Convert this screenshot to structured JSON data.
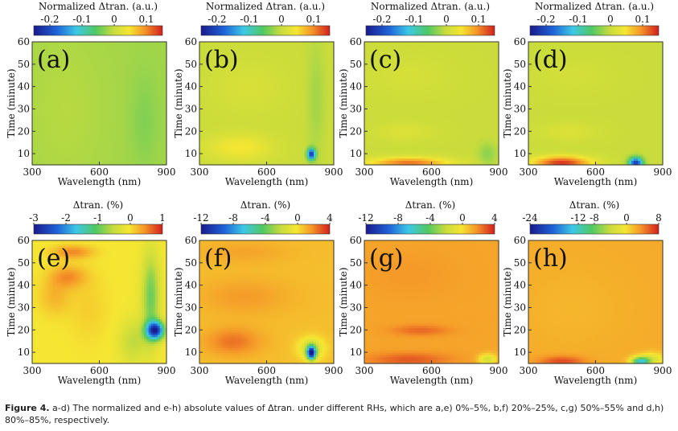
{
  "figure": {
    "caption_label": "Figure 4.",
    "caption_text": "a-d) The normalized and e-h) absolute values of Δtran. under different RHs, which are a,e) 0%–5%, b,f) 20%–25%, c,g) 50%–55% and d,h) 80%–85%, respectively."
  },
  "chart_data": [
    {
      "type": "heatmap",
      "panel": "(a)",
      "colorbar_title": "Normalized Δtran. (a.u.)",
      "colorbar_ticks": [
        "-0.2",
        "-0.1",
        "0",
        "0.1"
      ],
      "clim": [
        -0.25,
        0.15
      ],
      "colorbar_tick_values": [
        -0.2,
        -0.1,
        0,
        0.1
      ],
      "xlabel": "Wavelength (nm)",
      "ylabel": "Time (minute)",
      "x_ticks": [
        300,
        600,
        900
      ],
      "y_ticks": [
        10,
        20,
        30,
        40,
        50,
        60
      ],
      "xlim": [
        300,
        900
      ],
      "ylim": [
        5,
        60
      ],
      "base": -0.02,
      "features": [
        {
          "x": 450,
          "y": 30,
          "sx": 200,
          "sy": 40,
          "v": 0.01
        },
        {
          "x": 800,
          "y": 25,
          "sx": 60,
          "sy": 20,
          "v": -0.015
        }
      ]
    },
    {
      "type": "heatmap",
      "panel": "(b)",
      "colorbar_title": "Normalized Δtran. (a.u.)",
      "colorbar_ticks": [
        "-0.2",
        "-0.1",
        "0",
        "0.1"
      ],
      "clim": [
        -0.25,
        0.15
      ],
      "colorbar_tick_values": [
        -0.2,
        -0.1,
        0,
        0.1
      ],
      "xlabel": "Wavelength (nm)",
      "ylabel": "Time (minute)",
      "x_ticks": [
        300,
        600,
        900
      ],
      "y_ticks": [
        10,
        20,
        30,
        40,
        50,
        60
      ],
      "xlim": [
        300,
        900
      ],
      "ylim": [
        5,
        60
      ],
      "base": 0.0,
      "features": [
        {
          "x": 480,
          "y": 13,
          "sx": 150,
          "sy": 6,
          "v": 0.045
        },
        {
          "x": 520,
          "y": 40,
          "sx": 180,
          "sy": 12,
          "v": 0.015
        },
        {
          "x": 800,
          "y": 10,
          "sx": 18,
          "sy": 2.5,
          "v": -0.22
        },
        {
          "x": 820,
          "y": 35,
          "sx": 40,
          "sy": 25,
          "v": -0.02
        }
      ]
    },
    {
      "type": "heatmap",
      "panel": "(c)",
      "colorbar_title": "Normalized Δtran. (a.u.)",
      "colorbar_ticks": [
        "-0.2",
        "-0.1",
        "0",
        "0.1"
      ],
      "clim": [
        -0.25,
        0.15
      ],
      "colorbar_tick_values": [
        -0.2,
        -0.1,
        0,
        0.1
      ],
      "xlabel": "Wavelength (nm)",
      "ylabel": "Time (minute)",
      "x_ticks": [
        300,
        600,
        900
      ],
      "y_ticks": [
        10,
        20,
        30,
        40,
        50,
        60
      ],
      "xlim": [
        300,
        900
      ],
      "ylim": [
        5,
        60
      ],
      "base": 0.0,
      "features": [
        {
          "x": 500,
          "y": 6,
          "sx": 180,
          "sy": 2.5,
          "v": 0.11
        },
        {
          "x": 480,
          "y": 20,
          "sx": 130,
          "sy": 4,
          "v": 0.02
        },
        {
          "x": 500,
          "y": 45,
          "sx": 200,
          "sy": 10,
          "v": 0.012
        },
        {
          "x": 850,
          "y": 10,
          "sx": 40,
          "sy": 5,
          "v": -0.03
        }
      ]
    },
    {
      "type": "heatmap",
      "panel": "(d)",
      "colorbar_title": "Normalized Δtran. (a.u.)",
      "colorbar_ticks": [
        "-0.2",
        "-0.1",
        "0",
        "0.1"
      ],
      "clim": [
        -0.25,
        0.15
      ],
      "colorbar_tick_values": [
        -0.2,
        -0.1,
        0,
        0.1
      ],
      "xlabel": "Wavelength (nm)",
      "ylabel": "Time (minute)",
      "x_ticks": [
        300,
        600,
        900
      ],
      "y_ticks": [
        10,
        20,
        30,
        40,
        50,
        60
      ],
      "xlim": [
        300,
        900
      ],
      "ylim": [
        5,
        60
      ],
      "base": 0.0,
      "features": [
        {
          "x": 450,
          "y": 6,
          "sx": 130,
          "sy": 3,
          "v": 0.14
        },
        {
          "x": 480,
          "y": 20,
          "sx": 130,
          "sy": 4,
          "v": 0.02
        },
        {
          "x": 780,
          "y": 6,
          "sx": 30,
          "sy": 2.5,
          "v": -0.22
        },
        {
          "x": 500,
          "y": 45,
          "sx": 180,
          "sy": 8,
          "v": 0.01
        }
      ]
    },
    {
      "type": "heatmap",
      "panel": "(e)",
      "colorbar_title": "Δtran. (%)",
      "colorbar_ticks": [
        "-3",
        "-2",
        "-1",
        "0",
        "1"
      ],
      "clim": [
        -3,
        1
      ],
      "colorbar_tick_values": [
        -3,
        -2,
        -1,
        0,
        1
      ],
      "xlabel": "Wavelength (nm)",
      "ylabel": "Time (minute)",
      "x_ticks": [
        300,
        600,
        900
      ],
      "y_ticks": [
        10,
        20,
        30,
        40,
        50,
        60
      ],
      "xlim": [
        300,
        900
      ],
      "ylim": [
        5,
        60
      ],
      "base": -0.05,
      "features": [
        {
          "x": 480,
          "y": 55,
          "sx": 90,
          "sy": 3,
          "v": 0.55
        },
        {
          "x": 460,
          "y": 44,
          "sx": 80,
          "sy": 5,
          "v": 0.5
        },
        {
          "x": 400,
          "y": 35,
          "sx": 70,
          "sy": 8,
          "v": 0.3
        },
        {
          "x": 550,
          "y": 30,
          "sx": 90,
          "sy": 15,
          "v": 0.15
        },
        {
          "x": 850,
          "y": 20,
          "sx": 40,
          "sy": 4,
          "v": -2.6
        },
        {
          "x": 830,
          "y": 35,
          "sx": 40,
          "sy": 20,
          "v": -0.9
        },
        {
          "x": 750,
          "y": 15,
          "sx": 60,
          "sy": 10,
          "v": -0.5
        }
      ]
    },
    {
      "type": "heatmap",
      "panel": "(f)",
      "colorbar_title": "Δtran. (%)",
      "colorbar_ticks": [
        "-12",
        "-8",
        "-4",
        "0",
        "4"
      ],
      "clim": [
        -12,
        4
      ],
      "colorbar_tick_values": [
        -12,
        -8,
        -4,
        0,
        4
      ],
      "xlabel": "Wavelength (nm)",
      "ylabel": "Time (minute)",
      "x_ticks": [
        300,
        600,
        900
      ],
      "y_ticks": [
        10,
        20,
        30,
        40,
        50,
        60
      ],
      "xlim": [
        300,
        900
      ],
      "ylim": [
        5,
        60
      ],
      "base": 0.8,
      "features": [
        {
          "x": 450,
          "y": 15,
          "sx": 120,
          "sy": 6,
          "v": 1.6
        },
        {
          "x": 500,
          "y": 35,
          "sx": 200,
          "sy": 8,
          "v": 0.8
        },
        {
          "x": 500,
          "y": 55,
          "sx": 200,
          "sy": 5,
          "v": 0.6
        },
        {
          "x": 800,
          "y": 10,
          "sx": 20,
          "sy": 3,
          "v": -12
        },
        {
          "x": 800,
          "y": 12,
          "sx": 60,
          "sy": 5,
          "v": -2.5
        }
      ]
    },
    {
      "type": "heatmap",
      "panel": "(g)",
      "colorbar_title": "Δtran. (%)",
      "colorbar_ticks": [
        "-12",
        "-8",
        "-4",
        "0",
        "4"
      ],
      "clim": [
        -12,
        4
      ],
      "colorbar_tick_values": [
        -12,
        -8,
        -4,
        0,
        4
      ],
      "xlabel": "Wavelength (nm)",
      "ylabel": "Time (minute)",
      "x_ticks": [
        300,
        600,
        900
      ],
      "y_ticks": [
        10,
        20,
        30,
        40,
        50,
        60
      ],
      "xlim": [
        300,
        900
      ],
      "ylim": [
        5,
        60
      ],
      "base": 1.4,
      "features": [
        {
          "x": 550,
          "y": 20,
          "sx": 130,
          "sy": 2.5,
          "v": 1.2
        },
        {
          "x": 500,
          "y": 7,
          "sx": 180,
          "sy": 3,
          "v": 1.5
        },
        {
          "x": 500,
          "y": 45,
          "sx": 200,
          "sy": 10,
          "v": 0.3
        },
        {
          "x": 850,
          "y": 7,
          "sx": 40,
          "sy": 2.5,
          "v": -3
        }
      ]
    },
    {
      "type": "heatmap",
      "panel": "(h)",
      "colorbar_title": "Δtran. (%)",
      "colorbar_ticks": [
        "-24",
        "-12",
        "-8",
        "0",
        "8"
      ],
      "clim": [
        -24,
        8
      ],
      "colorbar_tick_values": [
        -24,
        -12,
        -8,
        0,
        8
      ],
      "xlabel": "Wavelength (nm)",
      "ylabel": "Time (minute)",
      "x_ticks": [
        300,
        600,
        900
      ],
      "y_ticks": [
        10,
        20,
        30,
        40,
        50,
        60
      ],
      "xlim": [
        300,
        900
      ],
      "ylim": [
        5,
        60
      ],
      "base": 2.5,
      "features": [
        {
          "x": 450,
          "y": 6,
          "sx": 100,
          "sy": 2.5,
          "v": 4
        },
        {
          "x": 500,
          "y": 30,
          "sx": 250,
          "sy": 20,
          "v": -0.5
        },
        {
          "x": 800,
          "y": 6,
          "sx": 40,
          "sy": 2,
          "v": -14
        },
        {
          "x": 850,
          "y": 7,
          "sx": 60,
          "sy": 3,
          "v": -5
        }
      ]
    }
  ]
}
